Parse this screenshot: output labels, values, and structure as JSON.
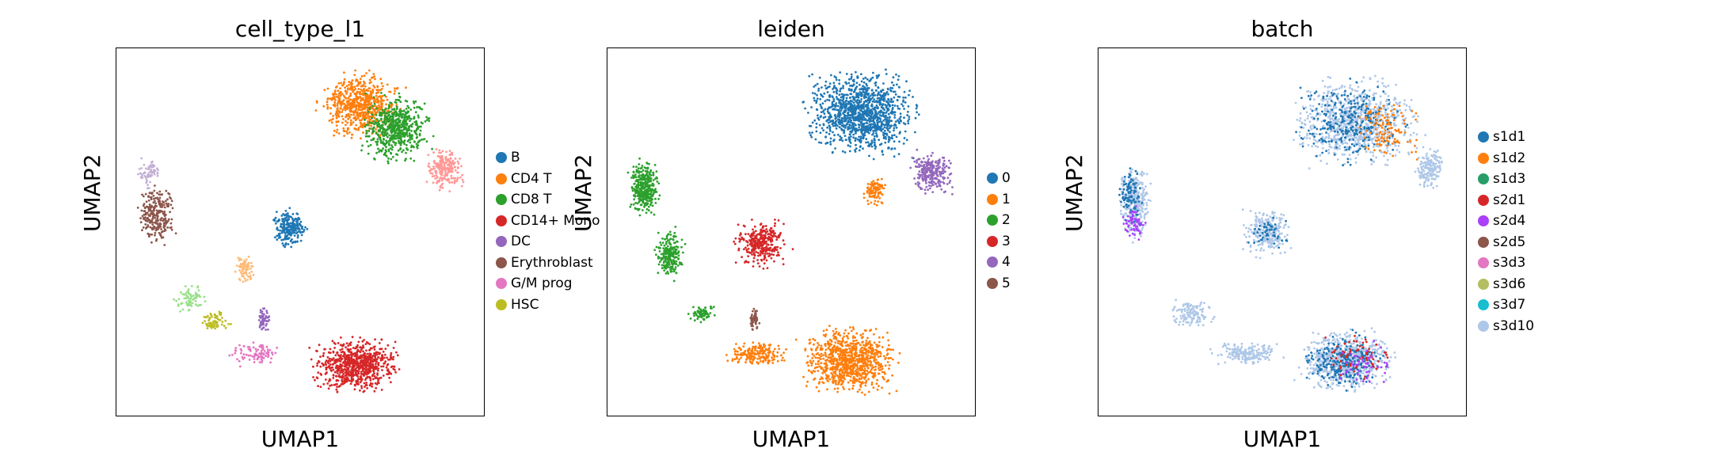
{
  "chart_data": [
    {
      "type": "scatter",
      "title": "cell_type_l1",
      "xlabel": "UMAP1",
      "ylabel": "UMAP2",
      "legend": [
        {
          "label": "B",
          "color": "#1f77b4"
        },
        {
          "label": "CD4 T",
          "color": "#ff7f0e"
        },
        {
          "label": "CD8 T",
          "color": "#2ca02c"
        },
        {
          "label": "CD14+ Mono",
          "color": "#d62728"
        },
        {
          "label": "DC",
          "color": "#9467bd"
        },
        {
          "label": "Erythroblast",
          "color": "#8c564b"
        },
        {
          "label": "G/M prog",
          "color": "#e377c2"
        },
        {
          "label": "HSC",
          "color": "#bcbd22"
        }
      ],
      "clusters": [
        {
          "color": "#ff7f0e",
          "x": 0.66,
          "y": 0.16,
          "rx": 0.13,
          "ry": 0.11,
          "n": 650
        },
        {
          "color": "#2ca02c",
          "x": 0.76,
          "y": 0.22,
          "rx": 0.11,
          "ry": 0.11,
          "n": 600
        },
        {
          "color": "#ff9896",
          "x": 0.89,
          "y": 0.33,
          "rx": 0.06,
          "ry": 0.07,
          "n": 220
        },
        {
          "color": "#1f77b4",
          "x": 0.47,
          "y": 0.49,
          "rx": 0.06,
          "ry": 0.06,
          "n": 220
        },
        {
          "color": "#ffbb78",
          "x": 0.35,
          "y": 0.6,
          "rx": 0.03,
          "ry": 0.05,
          "n": 80
        },
        {
          "color": "#c5b0d5",
          "x": 0.09,
          "y": 0.34,
          "rx": 0.04,
          "ry": 0.05,
          "n": 70
        },
        {
          "color": "#8c564b",
          "x": 0.11,
          "y": 0.46,
          "rx": 0.06,
          "ry": 0.09,
          "n": 260
        },
        {
          "color": "#98df8a",
          "x": 0.2,
          "y": 0.68,
          "rx": 0.05,
          "ry": 0.05,
          "n": 70
        },
        {
          "color": "#bcbd22",
          "x": 0.27,
          "y": 0.74,
          "rx": 0.05,
          "ry": 0.04,
          "n": 70
        },
        {
          "color": "#e377c2",
          "x": 0.38,
          "y": 0.83,
          "rx": 0.09,
          "ry": 0.04,
          "n": 90
        },
        {
          "color": "#9467bd",
          "x": 0.4,
          "y": 0.74,
          "rx": 0.02,
          "ry": 0.04,
          "n": 60
        },
        {
          "color": "#d62728",
          "x": 0.65,
          "y": 0.86,
          "rx": 0.14,
          "ry": 0.09,
          "n": 760
        }
      ]
    },
    {
      "type": "scatter",
      "title": "leiden",
      "xlabel": "UMAP1",
      "ylabel": "UMAP2",
      "legend": [
        {
          "label": "0",
          "color": "#1f77b4"
        },
        {
          "label": "1",
          "color": "#ff7f0e"
        },
        {
          "label": "2",
          "color": "#2ca02c"
        },
        {
          "label": "3",
          "color": "#d62728"
        },
        {
          "label": "4",
          "color": "#9467bd"
        },
        {
          "label": "5",
          "color": "#8c564b"
        }
      ],
      "clusters": [
        {
          "color": "#1f77b4",
          "x": 0.69,
          "y": 0.18,
          "rx": 0.18,
          "ry": 0.14,
          "n": 1200
        },
        {
          "color": "#9467bd",
          "x": 0.88,
          "y": 0.34,
          "rx": 0.07,
          "ry": 0.07,
          "n": 260
        },
        {
          "color": "#ff7f0e",
          "x": 0.73,
          "y": 0.39,
          "rx": 0.04,
          "ry": 0.05,
          "n": 100
        },
        {
          "color": "#d62728",
          "x": 0.42,
          "y": 0.53,
          "rx": 0.09,
          "ry": 0.08,
          "n": 330
        },
        {
          "color": "#8c564b",
          "x": 0.4,
          "y": 0.74,
          "rx": 0.02,
          "ry": 0.04,
          "n": 50
        },
        {
          "color": "#2ca02c",
          "x": 0.1,
          "y": 0.38,
          "rx": 0.05,
          "ry": 0.09,
          "n": 350
        },
        {
          "color": "#2ca02c",
          "x": 0.17,
          "y": 0.56,
          "rx": 0.05,
          "ry": 0.08,
          "n": 230
        },
        {
          "color": "#2ca02c",
          "x": 0.26,
          "y": 0.72,
          "rx": 0.04,
          "ry": 0.03,
          "n": 70
        },
        {
          "color": "#ff7f0e",
          "x": 0.41,
          "y": 0.83,
          "rx": 0.1,
          "ry": 0.04,
          "n": 200
        },
        {
          "color": "#ff7f0e",
          "x": 0.66,
          "y": 0.85,
          "rx": 0.15,
          "ry": 0.11,
          "n": 900
        }
      ]
    },
    {
      "type": "scatter",
      "title": "batch",
      "xlabel": "UMAP1",
      "ylabel": "UMAP2",
      "legend": [
        {
          "label": "s1d1",
          "color": "#1f77b4"
        },
        {
          "label": "s1d2",
          "color": "#ff7f0e"
        },
        {
          "label": "s1d3",
          "color": "#279e68"
        },
        {
          "label": "s2d1",
          "color": "#d62728"
        },
        {
          "label": "s2d4",
          "color": "#aa40fc"
        },
        {
          "label": "s2d5",
          "color": "#8c564b"
        },
        {
          "label": "s3d3",
          "color": "#e377c2"
        },
        {
          "label": "s3d6",
          "color": "#b5bd61"
        },
        {
          "label": "s3d7",
          "color": "#17becf"
        },
        {
          "label": "s3d10",
          "color": "#aec7e8"
        }
      ],
      "clusters": [
        {
          "color": "#aec7e8",
          "x": 0.7,
          "y": 0.2,
          "rx": 0.2,
          "ry": 0.14,
          "n": 900
        },
        {
          "color": "#1f77b4",
          "x": 0.68,
          "y": 0.2,
          "rx": 0.18,
          "ry": 0.13,
          "n": 300
        },
        {
          "color": "#ff7f0e",
          "x": 0.78,
          "y": 0.22,
          "rx": 0.12,
          "ry": 0.1,
          "n": 120
        },
        {
          "color": "#aec7e8",
          "x": 0.9,
          "y": 0.33,
          "rx": 0.05,
          "ry": 0.07,
          "n": 160
        },
        {
          "color": "#aec7e8",
          "x": 0.46,
          "y": 0.5,
          "rx": 0.08,
          "ry": 0.08,
          "n": 240
        },
        {
          "color": "#1f77b4",
          "x": 0.46,
          "y": 0.5,
          "rx": 0.07,
          "ry": 0.07,
          "n": 50
        },
        {
          "color": "#aec7e8",
          "x": 0.1,
          "y": 0.42,
          "rx": 0.05,
          "ry": 0.12,
          "n": 330
        },
        {
          "color": "#1f77b4",
          "x": 0.09,
          "y": 0.4,
          "rx": 0.04,
          "ry": 0.1,
          "n": 100
        },
        {
          "color": "#aa40fc",
          "x": 0.1,
          "y": 0.47,
          "rx": 0.04,
          "ry": 0.06,
          "n": 60
        },
        {
          "color": "#aec7e8",
          "x": 0.25,
          "y": 0.72,
          "rx": 0.08,
          "ry": 0.05,
          "n": 120
        },
        {
          "color": "#aec7e8",
          "x": 0.4,
          "y": 0.83,
          "rx": 0.11,
          "ry": 0.04,
          "n": 180
        },
        {
          "color": "#aec7e8",
          "x": 0.67,
          "y": 0.85,
          "rx": 0.15,
          "ry": 0.1,
          "n": 750
        },
        {
          "color": "#1f77b4",
          "x": 0.67,
          "y": 0.85,
          "rx": 0.13,
          "ry": 0.09,
          "n": 250
        },
        {
          "color": "#d62728",
          "x": 0.7,
          "y": 0.84,
          "rx": 0.12,
          "ry": 0.08,
          "n": 70
        },
        {
          "color": "#aa40fc",
          "x": 0.73,
          "y": 0.86,
          "rx": 0.1,
          "ry": 0.07,
          "n": 50
        }
      ]
    }
  ]
}
